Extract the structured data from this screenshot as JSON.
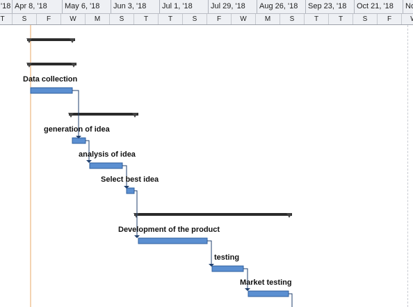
{
  "timescale": {
    "major": [
      "'18",
      "Apr 8, '18",
      "May 6, '18",
      "Jun 3, '18",
      "Jul 1, '18",
      "Jul 29, '18",
      "Aug 26, '18",
      "Sep 23, '18",
      "Oct 21, '18",
      "Nov"
    ],
    "minor": [
      "T",
      "S",
      "F",
      "W",
      "M",
      "S",
      "T",
      "T",
      "S",
      "F",
      "W",
      "M",
      "S",
      "T",
      "T",
      "S",
      "F",
      "W",
      "M",
      "S"
    ]
  },
  "tasks": [
    {
      "id": "summary-1",
      "kind": "summary",
      "label": ""
    },
    {
      "id": "summary-2",
      "kind": "summary",
      "label": ""
    },
    {
      "id": "data-collection",
      "kind": "task",
      "label": "Data collection"
    },
    {
      "id": "summary-3",
      "kind": "summary",
      "label": ""
    },
    {
      "id": "generation-of-idea",
      "kind": "task",
      "label": "generation of idea"
    },
    {
      "id": "analysis-of-idea",
      "kind": "task",
      "label": "analysis of idea"
    },
    {
      "id": "select-best-idea",
      "kind": "task",
      "label": "Select best idea"
    },
    {
      "id": "summary-4",
      "kind": "summary",
      "label": ""
    },
    {
      "id": "development-of-the-product",
      "kind": "task",
      "label": "Development of the product"
    },
    {
      "id": "testing",
      "kind": "task",
      "label": "testing"
    },
    {
      "id": "market-testing",
      "kind": "task",
      "label": "Market testing"
    }
  ],
  "colors": {
    "task_bar": "#5b8fd1",
    "task_bar_border": "#2f5f9e",
    "summary_bar": "#2b2b2b",
    "link_line": "#1f3f6e",
    "today_line": "#e8a766"
  }
}
